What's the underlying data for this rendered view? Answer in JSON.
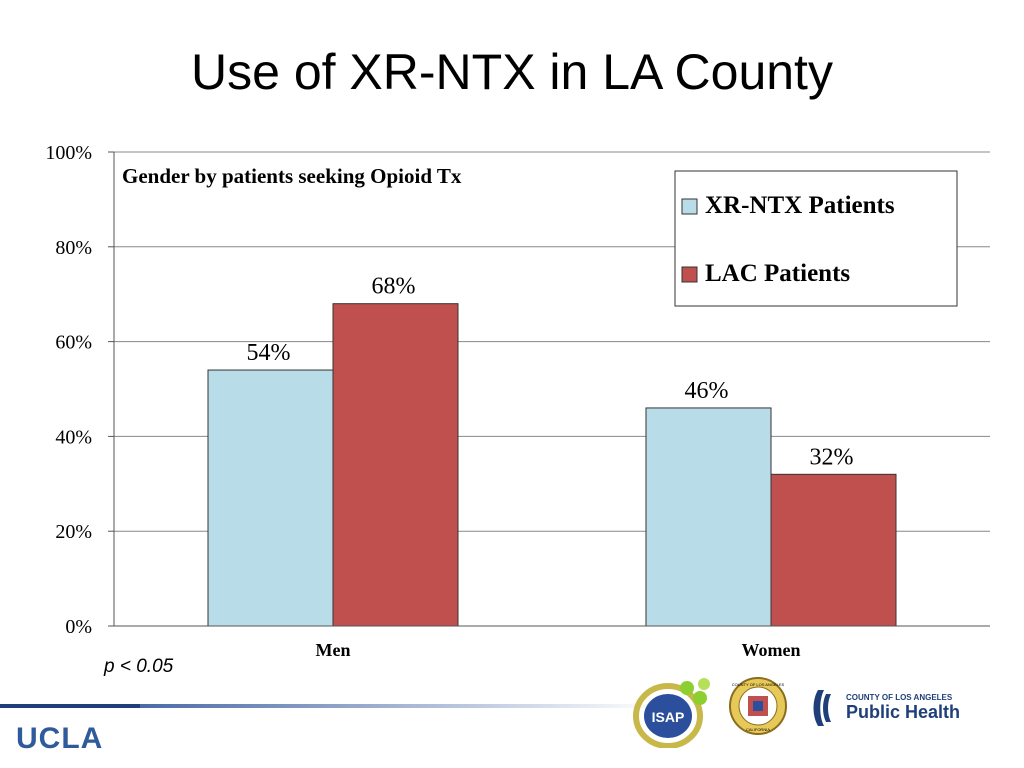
{
  "slide": {
    "title": "Use of XR-NTX in LA County",
    "note": "p < 0.05"
  },
  "logos": {
    "isap_text": "ISAP",
    "seal_text": "COUNTY OF LOS ANGELES",
    "seal_bottom": "CALIFORNIA",
    "ph_county": "COUNTY OF LOS ANGELES",
    "ph_name": "Public Health",
    "ucla": "UCLA"
  },
  "colors": {
    "xr_ntx": "#b8dde8",
    "lac": "#c0504d",
    "ucla_blue": "#2f5b9a",
    "ph_blue": "#1f3f7a"
  },
  "chart_data": {
    "type": "bar",
    "title": "Gender by patients seeking Opioid Tx",
    "categories": [
      "Men",
      "Women"
    ],
    "series": [
      {
        "name": "XR-NTX Patients",
        "values": [
          54,
          46
        ],
        "labels": [
          "54%",
          "46%"
        ]
      },
      {
        "name": "LAC Patients",
        "values": [
          68,
          32
        ],
        "labels": [
          "68%",
          "32%"
        ]
      }
    ],
    "ylim": [
      0,
      100
    ],
    "yticks": [
      0,
      20,
      40,
      60,
      80,
      100
    ],
    "ytick_labels": [
      "0%",
      "20%",
      "40%",
      "60%",
      "80%",
      "100%"
    ],
    "grid": true,
    "legend": "top-right"
  }
}
